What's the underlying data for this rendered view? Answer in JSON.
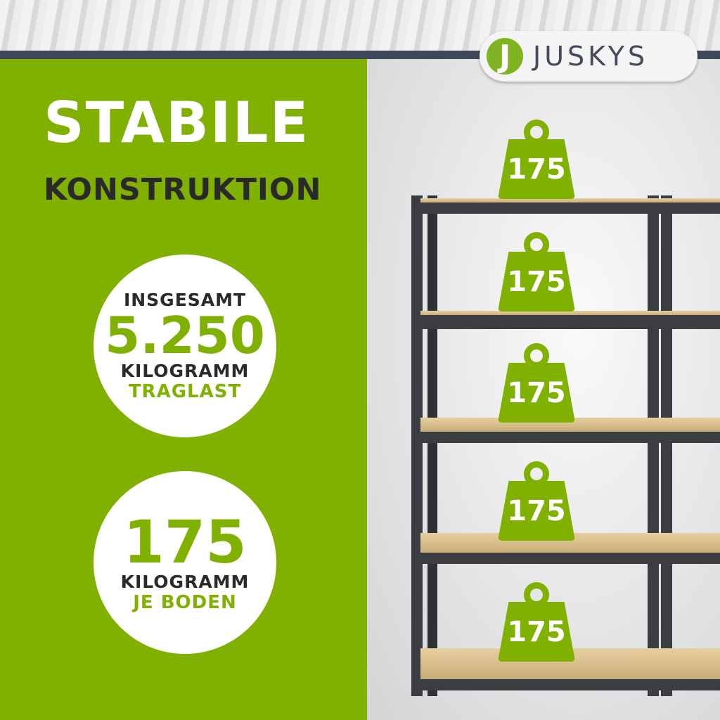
{
  "brand": {
    "name": "JUSKYS",
    "mark": "J",
    "accent": "#80b100"
  },
  "headline": {
    "title": "STABILE",
    "subtitle": "KONSTRUKTION"
  },
  "badge_total": {
    "label_top": "INSGESAMT",
    "value": "5.250",
    "unit": "KILOGRAMM",
    "label_bottom": "TRAGLAST"
  },
  "badge_per_shelf": {
    "value": "175",
    "unit": "KILOGRAMM",
    "label_bottom": "JE BODEN"
  },
  "weights": [
    "175",
    "175",
    "175",
    "175",
    "175"
  ]
}
